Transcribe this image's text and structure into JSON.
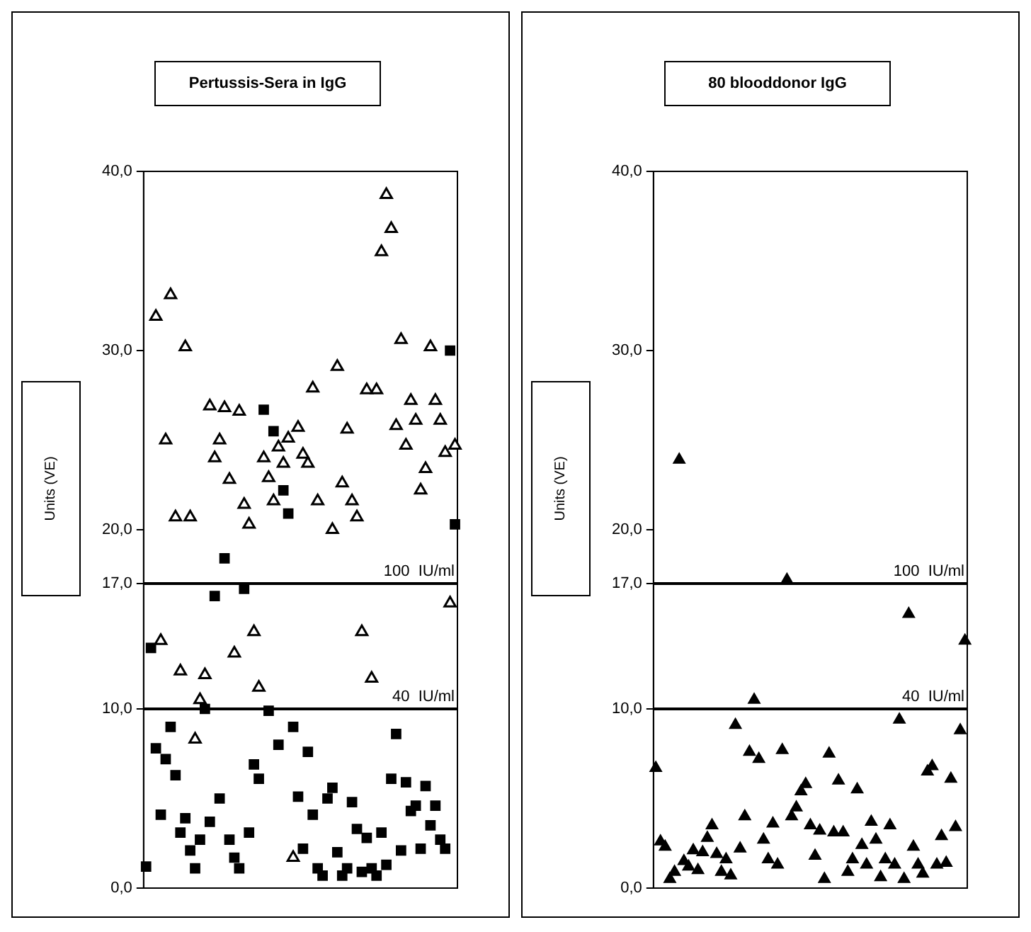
{
  "chart_data": [
    {
      "type": "scatter",
      "title": "Pertussis-Sera in IgG",
      "ylabel": "Units (VE)",
      "categories": [
        null,
        null,
        null,
        null,
        null,
        null,
        null,
        null,
        null,
        null,
        null,
        null,
        null,
        null,
        null,
        null,
        null,
        null,
        null,
        null,
        null,
        null,
        null,
        null,
        null,
        null,
        null,
        null,
        null,
        null,
        null,
        null,
        null,
        null,
        null,
        null,
        null,
        null,
        null,
        null,
        null,
        null,
        null,
        null,
        null,
        null,
        null,
        null,
        null,
        null,
        null,
        null,
        null,
        null,
        null,
        null,
        null,
        null,
        null,
        null,
        null,
        null,
        null,
        null
      ],
      "ylim": [
        0,
        40
      ],
      "yticks": [
        {
          "value": 0,
          "label": "0,0"
        },
        {
          "value": 10,
          "label": "10,0"
        },
        {
          "value": 17,
          "label": "17,0"
        },
        {
          "value": 20,
          "label": "20,0"
        },
        {
          "value": 30,
          "label": "30,0"
        },
        {
          "value": 40,
          "label": "40,0"
        }
      ],
      "tick_labels": "y",
      "grid": false,
      "legend": false,
      "ref_lines": [
        {
          "axis": "y",
          "value": 17,
          "label": "100  IU/ml",
          "color": "#000000"
        },
        {
          "axis": "y",
          "value": 10,
          "label": "40  IU/ml",
          "color": "#000000"
        }
      ],
      "series": [
        {
          "color": "#000000",
          "marker": "triangle",
          "values": [
            null,
            null,
            31.9,
            13.8,
            25.0,
            33.1,
            20.7,
            12.1,
            30.2,
            20.7,
            8.3,
            10.5,
            11.9,
            26.9,
            24.0,
            25.0,
            26.8,
            22.8,
            13.1,
            26.6,
            21.4,
            20.3,
            14.3,
            11.2,
            24.0,
            22.9,
            21.6,
            24.6,
            23.7,
            25.1,
            1.7,
            25.7,
            24.2,
            23.7,
            27.9,
            21.6,
            null,
            null,
            20.0,
            29.1,
            22.6,
            25.6,
            21.6,
            20.7,
            14.3,
            27.8,
            11.7,
            27.8,
            35.5,
            38.7,
            36.8,
            25.8,
            30.6,
            24.7,
            27.2,
            26.1,
            22.2,
            23.4,
            30.2,
            27.2,
            26.1,
            24.3,
            15.9,
            24.7
          ]
        },
        {
          "color": "#000000",
          "marker": "square",
          "values": [
            1.2,
            13.4,
            7.8,
            4.1,
            7.2,
            9.0,
            6.3,
            3.1,
            3.9,
            2.1,
            1.1,
            2.7,
            10.0,
            3.7,
            16.3,
            5.0,
            18.4,
            2.7,
            1.7,
            1.1,
            16.7,
            3.1,
            6.9,
            6.1,
            26.7,
            9.9,
            25.5,
            8.0,
            22.2,
            20.9,
            9.0,
            5.1,
            2.2,
            7.6,
            4.1,
            1.1,
            0.7,
            5.0,
            5.6,
            2.0,
            0.7,
            1.1,
            4.8,
            3.3,
            0.9,
            2.8,
            1.1,
            0.7,
            3.1,
            1.3,
            6.1,
            8.6,
            2.1,
            5.9,
            4.3,
            4.6,
            2.2,
            5.7,
            3.5,
            4.6,
            2.7,
            2.2,
            30.0,
            20.3
          ]
        }
      ]
    },
    {
      "type": "scatter",
      "title": "80 blooddonor IgG",
      "ylabel": "Units (VE)",
      "categories": [
        null,
        null,
        null,
        null,
        null,
        null,
        null,
        null,
        null,
        null,
        null,
        null,
        null,
        null,
        null,
        null,
        null,
        null,
        null,
        null,
        null,
        null,
        null,
        null,
        null,
        null,
        null,
        null,
        null,
        null,
        null,
        null,
        null,
        null,
        null,
        null,
        null,
        null,
        null,
        null,
        null,
        null,
        null,
        null,
        null,
        null,
        null,
        null,
        null,
        null,
        null,
        null,
        null,
        null,
        null,
        null,
        null,
        null,
        null,
        null,
        null,
        null,
        null,
        null,
        null,
        null,
        null
      ],
      "ylim": [
        0,
        40
      ],
      "yticks": [
        {
          "value": 0,
          "label": "0,0"
        },
        {
          "value": 10,
          "label": "10,0"
        },
        {
          "value": 17,
          "label": "17,0"
        },
        {
          "value": 20,
          "label": "20,0"
        },
        {
          "value": 30,
          "label": "30,0"
        },
        {
          "value": 40,
          "label": "40,0"
        }
      ],
      "tick_labels": "y",
      "grid": false,
      "legend": false,
      "ref_lines": [
        {
          "axis": "y",
          "value": 17,
          "label": "100  IU/ml",
          "color": "#000000"
        },
        {
          "axis": "y",
          "value": 10,
          "label": "40  IU/ml",
          "color": "#000000"
        }
      ],
      "series": [
        {
          "color": "#000000",
          "marker": "triangle",
          "values": [
            6.7,
            2.6,
            2.3,
            0.5,
            0.9,
            23.9,
            1.5,
            1.2,
            2.1,
            1.0,
            2.0,
            2.8,
            3.5,
            1.9,
            0.9,
            1.6,
            0.7,
            9.1,
            2.2,
            4.0,
            7.6,
            10.5,
            7.2,
            2.7,
            1.6,
            3.6,
            1.3,
            7.7,
            17.2,
            4.0,
            4.5,
            5.4,
            5.8,
            3.5,
            1.8,
            3.2,
            0.5,
            7.5,
            3.1,
            6.0,
            3.1,
            0.9,
            1.6,
            5.5,
            2.4,
            1.3,
            3.7,
            2.7,
            0.6,
            1.6,
            3.5,
            1.3,
            9.4,
            0.5,
            15.3,
            2.3,
            1.3,
            0.8,
            6.5,
            6.8,
            1.3,
            2.9,
            1.4,
            6.1,
            3.4,
            8.8,
            13.8
          ]
        }
      ]
    }
  ]
}
